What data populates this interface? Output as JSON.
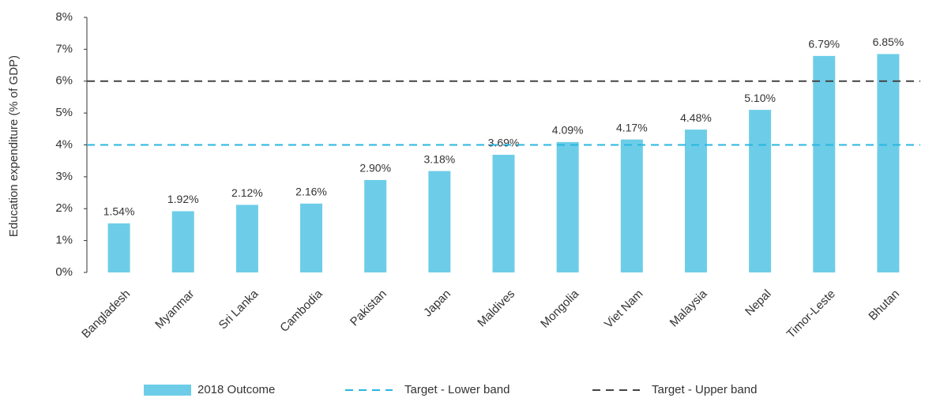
{
  "chart_data": {
    "type": "bar",
    "y_label": "Education expenditure (% of GDP)",
    "categories": [
      "Bangladesh",
      "Myanmar",
      "Sri Lanka",
      "Cambodia",
      "Pakistan",
      "Japan",
      "Maldives",
      "Mongolia",
      "Viet Nam",
      "Malaysia",
      "Nepal",
      "Timor-Leste",
      "Bhutan"
    ],
    "series": [
      {
        "name": "2018 Outcome",
        "color": "#6dcde8",
        "values": [
          1.54,
          1.92,
          2.12,
          2.16,
          2.9,
          3.18,
          3.69,
          4.09,
          4.17,
          4.48,
          5.1,
          6.79,
          6.85
        ],
        "value_labels": [
          "1.54%",
          "1.92%",
          "2.12%",
          "2.16%",
          "2.90%",
          "3.18%",
          "3.69%",
          "4.09%",
          "4.17%",
          "4.48%",
          "5.10%",
          "6.79%",
          "6.85%"
        ]
      }
    ],
    "reference_lines": [
      {
        "name": "Target - Lower band",
        "color": "#29b6e0",
        "value": 4
      },
      {
        "name": "Target - Upper band",
        "color": "#444444",
        "value": 6
      }
    ],
    "ylim": [
      0,
      8
    ],
    "yticks": [
      {
        "value": 0,
        "label": "0%"
      },
      {
        "value": 1,
        "label": "1%"
      },
      {
        "value": 2,
        "label": "2%"
      },
      {
        "value": 3,
        "label": "3%"
      },
      {
        "value": 4,
        "label": "4%"
      },
      {
        "value": 5,
        "label": "5%"
      },
      {
        "value": 6,
        "label": "6%"
      },
      {
        "value": 7,
        "label": "7%"
      },
      {
        "value": 8,
        "label": "8%"
      }
    ]
  }
}
